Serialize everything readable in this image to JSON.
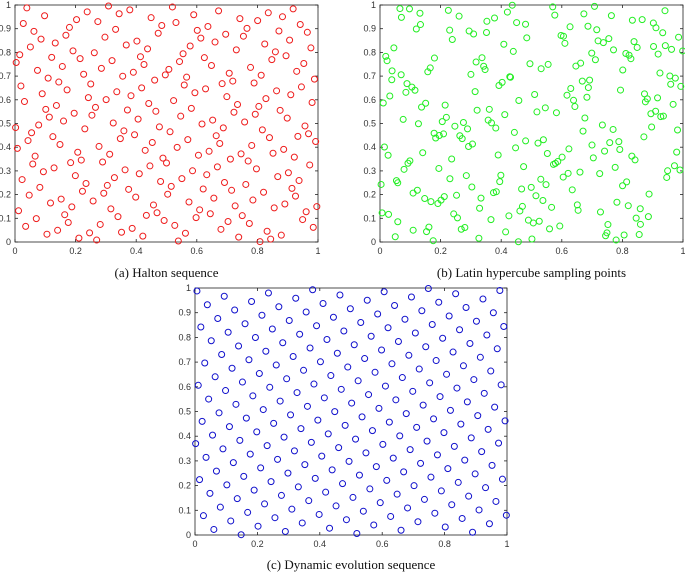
{
  "colors": {
    "halton": "#ee1c1c",
    "lhs": "#22ee22",
    "dynamic": "#1010cc",
    "axis": "#222222"
  },
  "chart_data": [
    {
      "type": "scatter",
      "caption": "(a) Halton sequence",
      "color_key": "halton",
      "xlim": [
        0,
        1
      ],
      "ylim": [
        0,
        1
      ],
      "xticks": [
        "0",
        "0.2",
        "0.4",
        "0.6",
        "0.8",
        "1"
      ],
      "yticks": [
        "0",
        "0.1",
        "0.2",
        "0.3",
        "0.4",
        "0.5",
        "0.6",
        "0.7",
        "0.8",
        "0.9",
        "1"
      ],
      "grid": false,
      "generator": "halton",
      "n": 256,
      "bases": [
        2,
        3
      ],
      "marker": "circle-open"
    },
    {
      "type": "scatter",
      "caption": "(b) Latin hypercube sampling points",
      "color_key": "lhs",
      "xlim": [
        0,
        1
      ],
      "ylim": [
        0,
        1
      ],
      "xticks": [
        "0",
        "0.2",
        "0.4",
        "0.6",
        "0.8",
        "1"
      ],
      "yticks": [
        "0",
        "0.1",
        "0.2",
        "0.3",
        "0.4",
        "0.5",
        "0.6",
        "0.7",
        "0.8",
        "0.9",
        "1"
      ],
      "grid": false,
      "generator": "lhs",
      "n": 256,
      "marker": "circle-open"
    },
    {
      "type": "scatter",
      "caption": "(c) Dynamic evolution sequence",
      "color_key": "dynamic",
      "xlim": [
        0,
        1
      ],
      "ylim": [
        0,
        1
      ],
      "xticks": [
        "0",
        "0.2",
        "0.4",
        "0.6",
        "0.8",
        "1"
      ],
      "yticks": [
        "0",
        "0.1",
        "0.2",
        "0.3",
        "0.4",
        "0.5",
        "0.6",
        "0.7",
        "0.8",
        "0.9",
        "1"
      ],
      "grid": false,
      "generator": "lattice",
      "n": 240,
      "marker": "circle-open"
    }
  ]
}
